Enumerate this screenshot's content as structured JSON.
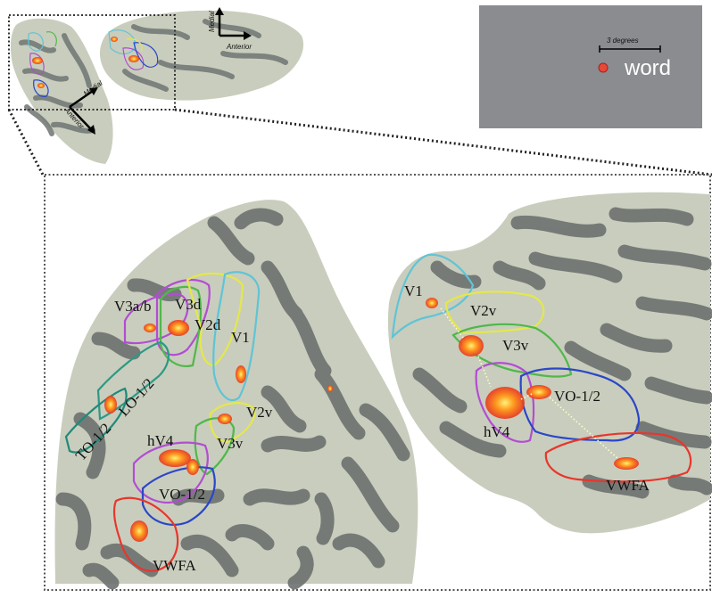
{
  "figure": {
    "legend_panel": {
      "scale_label": "3 degrees",
      "stimulus_label": "word",
      "panel_color": "#8a8c90",
      "dot_color": "#e8473a"
    },
    "orientation": {
      "top": {
        "medial": "Medial",
        "anterior": "Anterior"
      },
      "bottom": {
        "medial": "Medial",
        "anterior": "Anterior"
      }
    },
    "left_view_labels": {
      "v3ab": "V3a/b",
      "v3d": "V3d",
      "v2d": "V2d",
      "v1": "V1",
      "lo12": "LO-1/2",
      "to12": "TO-1/2",
      "v2v": "V2v",
      "hv4": "hV4",
      "v3v": "V3v",
      "vo12": "VO-1/2",
      "vwfa": "VWFA"
    },
    "right_view_labels": {
      "v1": "V1",
      "v2v": "V2v",
      "v3v": "V3v",
      "vo12": "VO-1/2",
      "hv4": "hV4",
      "vwfa": "VWFA"
    },
    "roi_colors": {
      "v1": "#5fc4d6",
      "v2": "#e4e84a",
      "v3": "#4fb84a",
      "hv4": "#b24dd2",
      "vo": "#2a47c8",
      "lo": "#2a9a86",
      "to": "#1f8a7a",
      "vwfa": "#e8362c",
      "cortex_light": "#c9cdbd",
      "cortex_dark": "#6f7472"
    }
  }
}
